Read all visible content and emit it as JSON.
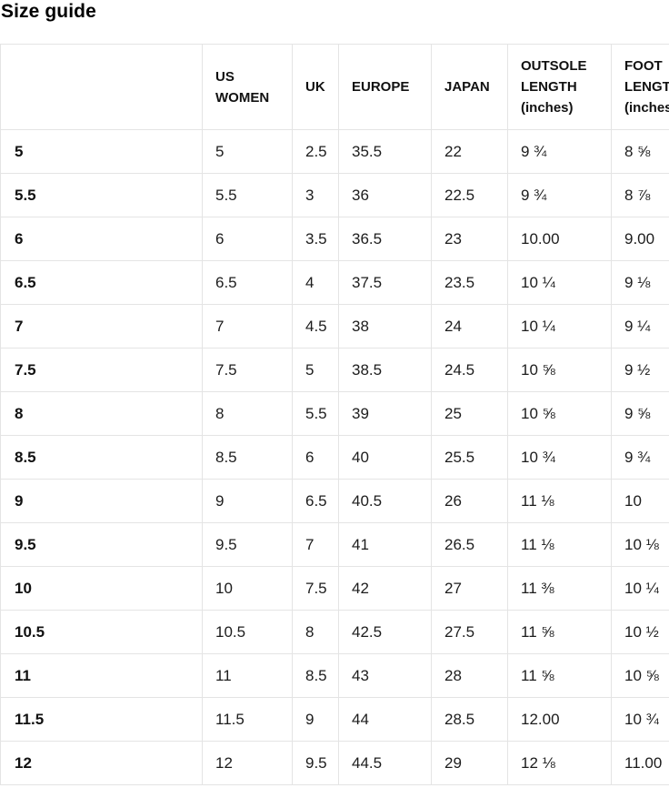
{
  "page": {
    "title": "Size guide"
  },
  "table": {
    "columns": [
      "",
      "US WOMEN",
      "UK",
      "EUROPE",
      "JAPAN",
      "OUTSOLE LENGTH (inches)",
      "FOOT LENGTH (inches)"
    ],
    "rows": [
      [
        "5",
        "5",
        "2.5",
        "35.5",
        "22",
        "9 ¾",
        "8 ⅝"
      ],
      [
        "5.5",
        "5.5",
        "3",
        "36",
        "22.5",
        "9 ¾",
        "8 ⅞"
      ],
      [
        "6",
        "6",
        "3.5",
        "36.5",
        "23",
        "10.00",
        "9.00"
      ],
      [
        "6.5",
        "6.5",
        "4",
        "37.5",
        "23.5",
        "10 ¼",
        "9 ⅛"
      ],
      [
        "7",
        "7",
        "4.5",
        "38",
        "24",
        "10 ¼",
        "9 ¼"
      ],
      [
        "7.5",
        "7.5",
        "5",
        "38.5",
        "24.5",
        "10 ⅝",
        "9 ½"
      ],
      [
        "8",
        "8",
        "5.5",
        "39",
        "25",
        "10 ⅝",
        "9 ⅝"
      ],
      [
        "8.5",
        "8.5",
        "6",
        "40",
        "25.5",
        "10 ¾",
        "9 ¾"
      ],
      [
        "9",
        "9",
        "6.5",
        "40.5",
        "26",
        "11 ⅛",
        "10"
      ],
      [
        "9.5",
        "9.5",
        "7",
        "41",
        "26.5",
        "11 ⅛",
        "10 ⅛"
      ],
      [
        "10",
        "10",
        "7.5",
        "42",
        "27",
        "11 ⅜",
        "10 ¼"
      ],
      [
        "10.5",
        "10.5",
        "8",
        "42.5",
        "27.5",
        "11 ⅝",
        "10 ½"
      ],
      [
        "11",
        "11",
        "8.5",
        "43",
        "28",
        "11 ⅝",
        "10 ⅝"
      ],
      [
        "11.5",
        "11.5",
        "9",
        "44",
        "28.5",
        "12.00",
        "10 ¾"
      ],
      [
        "12",
        "12",
        "9.5",
        "44.5",
        "29",
        "12 ⅛",
        "11.00"
      ]
    ]
  }
}
